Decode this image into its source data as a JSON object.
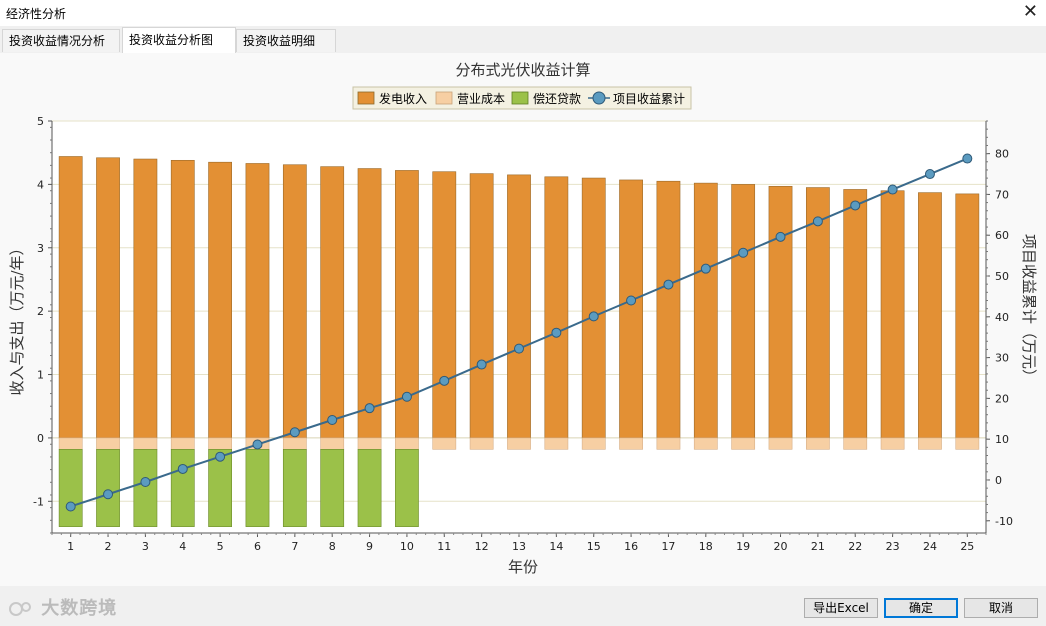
{
  "window": {
    "title": "经济性分析",
    "close_glyph": "✕"
  },
  "tabs": [
    {
      "label": "投资收益情况分析",
      "active": false
    },
    {
      "label": "投资收益分析图",
      "active": true
    },
    {
      "label": "投资收益明细",
      "active": false
    }
  ],
  "buttons": {
    "export": "导出Excel",
    "ok": "确定",
    "cancel": "取消"
  },
  "watermark": "大数跨境",
  "colors": {
    "revenue": "#e39034",
    "cost": "#f7cfa3",
    "loan": "#9bc149",
    "cumulative": "#3a6a8c",
    "marker": "#5b9bc0"
  },
  "chart_data": {
    "type": "bar",
    "title": "分布式光伏收益计算",
    "xlabel": "年份",
    "ylabel": "收入与支出（万元/年）",
    "y2label": "项目收益累计（万元）",
    "ylim": [
      -1.5,
      5
    ],
    "y2lim": [
      -13,
      88
    ],
    "yticks": [
      -1,
      0,
      1,
      2,
      3,
      4,
      5
    ],
    "y2ticks": [
      -10,
      0,
      10,
      20,
      30,
      40,
      50,
      60,
      70,
      80
    ],
    "grid": true,
    "legend_position": "top-center",
    "categories": [
      "1",
      "2",
      "3",
      "4",
      "5",
      "6",
      "7",
      "8",
      "9",
      "10",
      "11",
      "12",
      "13",
      "14",
      "15",
      "16",
      "17",
      "18",
      "19",
      "20",
      "21",
      "22",
      "23",
      "24",
      "25"
    ],
    "series": [
      {
        "name": "发电收入",
        "type": "bar",
        "axis": "left",
        "values": [
          4.44,
          4.42,
          4.4,
          4.38,
          4.35,
          4.33,
          4.31,
          4.28,
          4.25,
          4.22,
          4.2,
          4.17,
          4.15,
          4.12,
          4.1,
          4.07,
          4.05,
          4.02,
          4.0,
          3.97,
          3.95,
          3.92,
          3.9,
          3.87,
          3.85
        ]
      },
      {
        "name": "营业成本",
        "type": "bar",
        "axis": "left",
        "values": [
          -0.18,
          -0.18,
          -0.18,
          -0.18,
          -0.18,
          -0.18,
          -0.18,
          -0.18,
          -0.18,
          -0.18,
          -0.18,
          -0.18,
          -0.18,
          -0.18,
          -0.18,
          -0.18,
          -0.18,
          -0.18,
          -0.18,
          -0.18,
          -0.18,
          -0.18,
          -0.18,
          -0.18,
          -0.18
        ]
      },
      {
        "name": "偿还贷款",
        "type": "bar",
        "axis": "left",
        "values": [
          -1.22,
          -1.22,
          -1.22,
          -1.22,
          -1.22,
          -1.22,
          -1.22,
          -1.22,
          -1.22,
          -1.22,
          0,
          0,
          0,
          0,
          0,
          0,
          0,
          0,
          0,
          0,
          0,
          0,
          0,
          0,
          0
        ]
      },
      {
        "name": "项目收益累计",
        "type": "line",
        "axis": "right",
        "values": [
          -6.5,
          -3.5,
          -0.5,
          2.7,
          5.7,
          8.7,
          11.7,
          14.7,
          17.6,
          20.4,
          24.3,
          28.3,
          32.2,
          36.1,
          40.1,
          44.0,
          47.9,
          51.8,
          55.7,
          59.6,
          63.4,
          67.3,
          71.2,
          75.0,
          78.8
        ]
      }
    ]
  }
}
